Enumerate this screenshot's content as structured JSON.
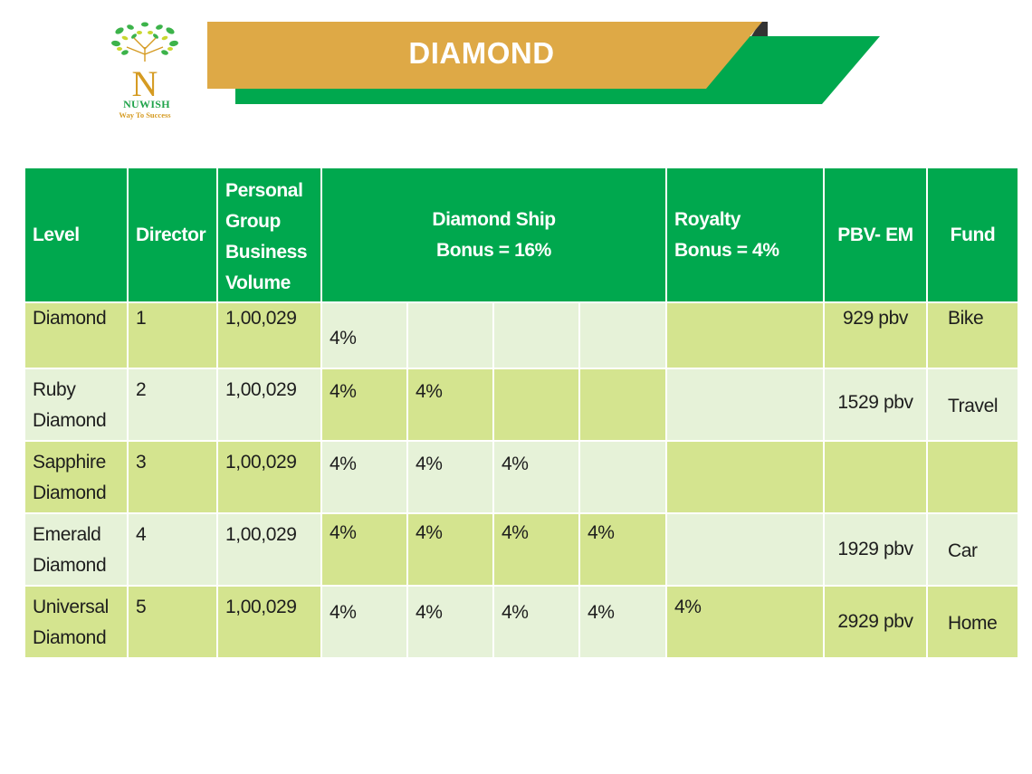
{
  "brand": {
    "name": "NUWISH",
    "tagline": "Way To Success",
    "letter": "N"
  },
  "banner": {
    "title": "DIAMOND"
  },
  "colors": {
    "green": "#00a84e",
    "gold": "#dea946",
    "row_dark": "#d4e48f",
    "row_light": "#e6f2d8"
  },
  "table": {
    "headers": {
      "level": "Level",
      "director": "Director",
      "pgbv": [
        "Personal",
        "Group",
        "Business",
        "Volume"
      ],
      "diamond_ship": [
        "Diamond Ship",
        "Bonus = 16%"
      ],
      "royalty": [
        "Royalty",
        "Bonus = 4%"
      ],
      "pbv": "PBV- EM",
      "fund": "Fund"
    },
    "rows": [
      {
        "level": [
          "Diamond"
        ],
        "director": "1",
        "volume": "1,00,029",
        "ds": [
          "4%",
          "",
          "",
          ""
        ],
        "royalty": "",
        "pbv": "929 pbv",
        "fund": "Bike"
      },
      {
        "level": [
          "Ruby",
          "Diamond"
        ],
        "director": "2",
        "volume": "1,00,029",
        "ds": [
          "4%",
          "4%",
          "",
          ""
        ],
        "royalty": "",
        "pbv": "1529 pbv",
        "fund": "Travel"
      },
      {
        "level": [
          "Sapphire",
          "Diamond"
        ],
        "director": "3",
        "volume": "1,00,029",
        "ds": [
          "4%",
          "4%",
          "4%",
          ""
        ],
        "royalty": "",
        "pbv": "",
        "fund": ""
      },
      {
        "level": [
          "Emerald",
          "Diamond"
        ],
        "director": "4",
        "volume": "1,00,029",
        "ds": [
          "4%",
          "4%",
          "4%",
          "4%"
        ],
        "royalty": "",
        "pbv": "1929 pbv",
        "fund": "Car"
      },
      {
        "level": [
          "Universal",
          "Diamond"
        ],
        "director": "5",
        "volume": "1,00,029",
        "ds": [
          "4%",
          "4%",
          "4%",
          "4%"
        ],
        "royalty": "4%",
        "pbv": "2929 pbv",
        "fund": "Home"
      }
    ]
  }
}
